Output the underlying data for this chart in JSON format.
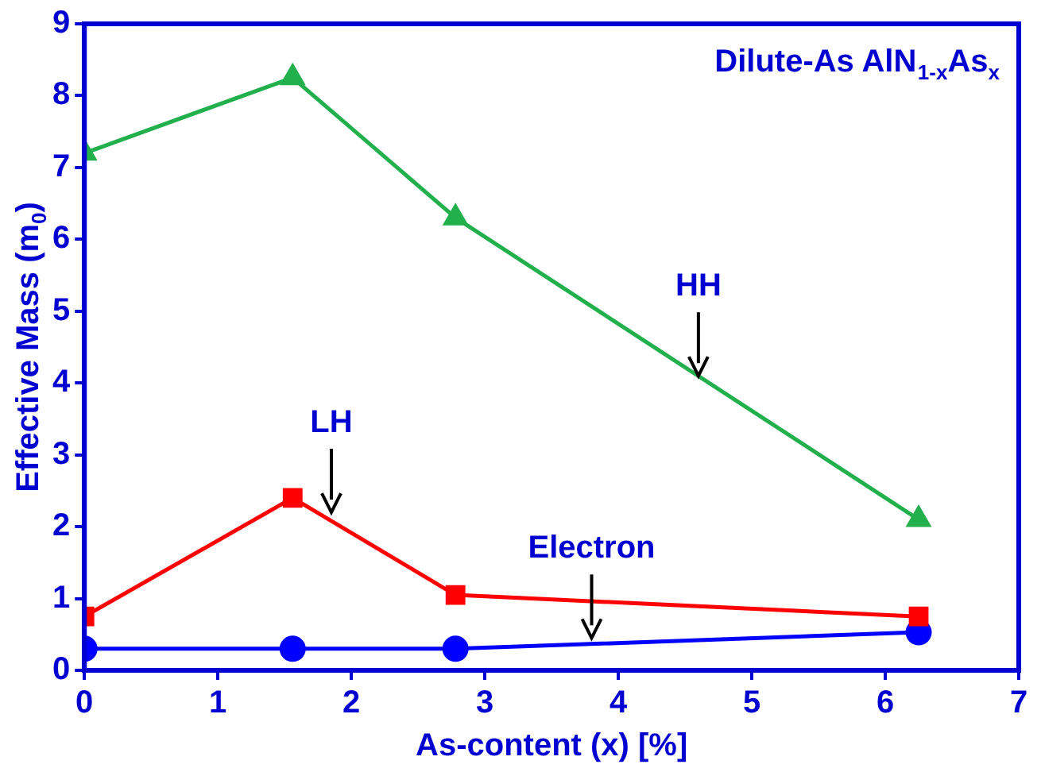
{
  "chart_data": {
    "type": "line",
    "title": "Dilute-As AlN$_{1-x}$As$_{x}$",
    "xlabel": "As-content (x) [%]",
    "ylabel": "Effective Mass (m$_{0}$)",
    "x": [
      0,
      1.56,
      2.78,
      6.25
    ],
    "series": [
      {
        "color": "#22b04c",
        "marker": "triangle",
        "values": [
          7.2,
          8.25,
          6.3,
          2.1
        ]
      },
      {
        "color": "#ff0000",
        "marker": "square",
        "values": [
          0.75,
          2.4,
          1.05,
          0.75
        ]
      },
      {
        "color": "#0000ff",
        "marker": "circle",
        "values": [
          0.3,
          0.3,
          0.3,
          0.53
        ]
      }
    ],
    "annotations": [
      {
        "text": "HH",
        "x": 4.6,
        "y": 4.1
      },
      {
        "text": "LH",
        "x": 1.85,
        "y": 2.2
      },
      {
        "text": "Electron",
        "x": 3.8,
        "y": 0.45
      }
    ],
    "xlim": [
      0,
      7
    ],
    "xticks": [
      0,
      1,
      2,
      3,
      4,
      5,
      6,
      7
    ],
    "ylim": [
      0,
      9
    ],
    "yticks": [
      0,
      1,
      2,
      3,
      4,
      5,
      6,
      7,
      8,
      9
    ],
    "grid": false,
    "legend": false
  }
}
